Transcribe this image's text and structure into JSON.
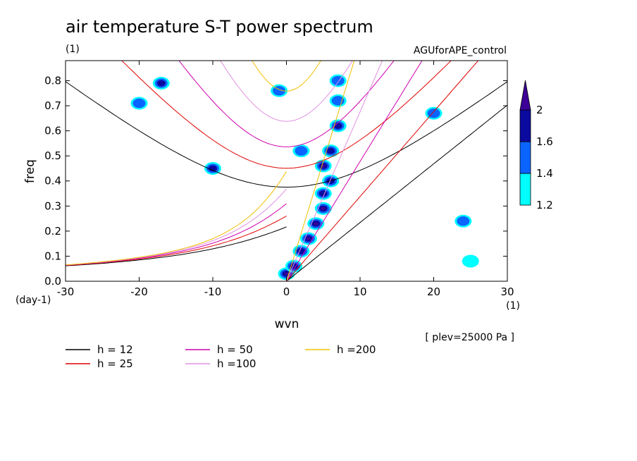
{
  "chart_data": {
    "type": "contour",
    "title": "air temperature S-T power spectrum",
    "units": "(1)",
    "experiment": "AGUforAPE_control",
    "xlabel": "wvn",
    "ylabel": "freq",
    "x_unit_label": "(1)",
    "y_unit_label": "(day-1)",
    "level_note": "[ plev=25000 Pa ]",
    "xlim": [
      -30,
      30
    ],
    "ylim": [
      0.0,
      0.88
    ],
    "x_ticks": [
      -30,
      -20,
      -10,
      0,
      10,
      20,
      30
    ],
    "x_tick_labels": [
      "-30",
      "-20",
      "-10",
      "0",
      "10",
      "20",
      "30"
    ],
    "y_ticks": [
      0.0,
      0.1,
      0.2,
      0.3,
      0.4,
      0.5,
      0.6,
      0.7,
      0.8
    ],
    "y_tick_labels": [
      "0.0",
      "0.1",
      "0.2",
      "0.3",
      "0.4",
      "0.5",
      "0.6",
      "0.7",
      "0.8"
    ],
    "colorbar": {
      "levels": [
        1.2,
        1.4,
        1.6,
        2
      ],
      "level_labels": [
        "1.2",
        "1.4",
        "1.6",
        "2"
      ],
      "colors": [
        "#00ffff",
        "#0a64ff",
        "#0a0aa0",
        "#3c0096"
      ]
    },
    "dispersion_curves": [
      {
        "label": "h = 12",
        "h": 12,
        "color": "#000000"
      },
      {
        "label": "h = 25",
        "h": 25,
        "color": "#e00000"
      },
      {
        "label": "h = 50",
        "h": 50,
        "color": "#d000b0"
      },
      {
        "label": "h =100",
        "h": 100,
        "color": "#e090e0"
      },
      {
        "label": "h =200",
        "h": 200,
        "color": "#f0c000"
      }
    ],
    "spectral_maxima": [
      {
        "wvn": 0,
        "freq": 0.03,
        "level": 2
      },
      {
        "wvn": 1,
        "freq": 0.06,
        "level": 1.6
      },
      {
        "wvn": 2,
        "freq": 0.12,
        "level": 1.6
      },
      {
        "wvn": 3,
        "freq": 0.17,
        "level": 2
      },
      {
        "wvn": 4,
        "freq": 0.23,
        "level": 2
      },
      {
        "wvn": 5,
        "freq": 0.29,
        "level": 2
      },
      {
        "wvn": 5,
        "freq": 0.35,
        "level": 1.6
      },
      {
        "wvn": 6,
        "freq": 0.4,
        "level": 1.6
      },
      {
        "wvn": 5,
        "freq": 0.46,
        "level": 2
      },
      {
        "wvn": 6,
        "freq": 0.52,
        "level": 1.6
      },
      {
        "wvn": 7,
        "freq": 0.62,
        "level": 1.6
      },
      {
        "wvn": 7,
        "freq": 0.72,
        "level": 1.4
      },
      {
        "wvn": 7,
        "freq": 0.8,
        "level": 1.4
      },
      {
        "wvn": -10,
        "freq": 0.45,
        "level": 1.6
      },
      {
        "wvn": -17,
        "freq": 0.79,
        "level": 1.6
      },
      {
        "wvn": -20,
        "freq": 0.71,
        "level": 1.4
      },
      {
        "wvn": 2,
        "freq": 0.52,
        "level": 1.4
      },
      {
        "wvn": -1,
        "freq": 0.76,
        "level": 1.4
      },
      {
        "wvn": 20,
        "freq": 0.67,
        "level": 1.4
      },
      {
        "wvn": 24,
        "freq": 0.24,
        "level": 1.4
      },
      {
        "wvn": 25,
        "freq": 0.08,
        "level": 1.2
      }
    ]
  }
}
